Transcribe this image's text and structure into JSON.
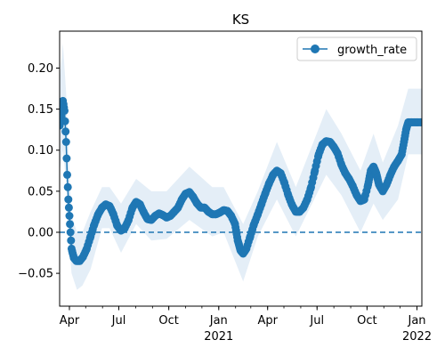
{
  "chart_data": {
    "type": "line",
    "title": "KS",
    "xlabel": "",
    "ylabel": "",
    "xlim": [
      "2020-03-14",
      "2022-01-10"
    ],
    "ylim": [
      -0.09,
      0.245
    ],
    "grid": false,
    "legend": {
      "placement": "top-right",
      "entries": [
        "growth_rate"
      ]
    },
    "colors": {
      "series": "#1f77b4",
      "band": "#dbe8f4",
      "zero_line": "#1f77b4"
    },
    "x_ticks": [
      {
        "date": "2020-04-01",
        "label": "Apr",
        "sub": ""
      },
      {
        "date": "2020-07-01",
        "label": "Jul",
        "sub": ""
      },
      {
        "date": "2020-10-01",
        "label": "Oct",
        "sub": ""
      },
      {
        "date": "2021-01-01",
        "label": "Jan",
        "sub": "2021"
      },
      {
        "date": "2021-04-01",
        "label": "Apr",
        "sub": ""
      },
      {
        "date": "2021-07-01",
        "label": "Jul",
        "sub": ""
      },
      {
        "date": "2021-10-01",
        "label": "Oct",
        "sub": ""
      },
      {
        "date": "2022-01-01",
        "label": "Jan",
        "sub": "2022"
      }
    ],
    "y_ticks": [
      {
        "value": -0.05,
        "label": "−0.05"
      },
      {
        "value": 0.0,
        "label": "0.00"
      },
      {
        "value": 0.05,
        "label": "0.05"
      },
      {
        "value": 0.1,
        "label": "0.10"
      },
      {
        "value": 0.15,
        "label": "0.15"
      },
      {
        "value": 0.2,
        "label": "0.20"
      }
    ],
    "reference_line": {
      "y": 0.0,
      "style": "dashed"
    },
    "series": [
      {
        "name": "growth_rate",
        "points": [
          [
            "2020-03-14",
            0.13
          ],
          [
            "2020-03-18",
            0.148
          ],
          [
            "2020-03-20",
            0.16
          ],
          [
            "2020-03-23",
            0.148
          ],
          [
            "2020-03-26",
            0.11
          ],
          [
            "2020-03-28",
            0.07
          ],
          [
            "2020-03-30",
            0.04
          ],
          [
            "2020-04-02",
            0.01
          ],
          [
            "2020-04-05",
            -0.02
          ],
          [
            "2020-04-09",
            -0.031
          ],
          [
            "2020-04-14",
            -0.035
          ],
          [
            "2020-04-20",
            -0.035
          ],
          [
            "2020-04-26",
            -0.03
          ],
          [
            "2020-05-03",
            -0.02
          ],
          [
            "2020-05-10",
            -0.005
          ],
          [
            "2020-05-17",
            0.01
          ],
          [
            "2020-05-24",
            0.022
          ],
          [
            "2020-05-31",
            0.03
          ],
          [
            "2020-06-07",
            0.034
          ],
          [
            "2020-06-14",
            0.032
          ],
          [
            "2020-06-21",
            0.022
          ],
          [
            "2020-06-28",
            0.008
          ],
          [
            "2020-07-05",
            0.002
          ],
          [
            "2020-07-12",
            0.005
          ],
          [
            "2020-07-19",
            0.015
          ],
          [
            "2020-07-26",
            0.03
          ],
          [
            "2020-08-02",
            0.037
          ],
          [
            "2020-08-09",
            0.034
          ],
          [
            "2020-08-16",
            0.024
          ],
          [
            "2020-08-23",
            0.016
          ],
          [
            "2020-08-30",
            0.015
          ],
          [
            "2020-09-06",
            0.02
          ],
          [
            "2020-09-13",
            0.023
          ],
          [
            "2020-09-20",
            0.021
          ],
          [
            "2020-09-27",
            0.018
          ],
          [
            "2020-10-04",
            0.02
          ],
          [
            "2020-10-11",
            0.025
          ],
          [
            "2020-10-18",
            0.03
          ],
          [
            "2020-10-25",
            0.04
          ],
          [
            "2020-11-01",
            0.047
          ],
          [
            "2020-11-08",
            0.049
          ],
          [
            "2020-11-15",
            0.043
          ],
          [
            "2020-11-22",
            0.035
          ],
          [
            "2020-11-29",
            0.03
          ],
          [
            "2020-12-06",
            0.03
          ],
          [
            "2020-12-13",
            0.025
          ],
          [
            "2020-12-20",
            0.022
          ],
          [
            "2020-12-27",
            0.022
          ],
          [
            "2021-01-03",
            0.024
          ],
          [
            "2021-01-10",
            0.027
          ],
          [
            "2021-01-17",
            0.026
          ],
          [
            "2021-01-24",
            0.02
          ],
          [
            "2021-01-31",
            0.01
          ],
          [
            "2021-02-05",
            -0.01
          ],
          [
            "2021-02-10",
            -0.022
          ],
          [
            "2021-02-15",
            -0.026
          ],
          [
            "2021-02-21",
            -0.02
          ],
          [
            "2021-02-28",
            -0.005
          ],
          [
            "2021-03-07",
            0.01
          ],
          [
            "2021-03-14",
            0.022
          ],
          [
            "2021-03-21",
            0.035
          ],
          [
            "2021-03-28",
            0.048
          ],
          [
            "2021-04-04",
            0.06
          ],
          [
            "2021-04-11",
            0.07
          ],
          [
            "2021-04-18",
            0.075
          ],
          [
            "2021-04-25",
            0.072
          ],
          [
            "2021-05-02",
            0.06
          ],
          [
            "2021-05-09",
            0.045
          ],
          [
            "2021-05-16",
            0.033
          ],
          [
            "2021-05-23",
            0.025
          ],
          [
            "2021-05-30",
            0.025
          ],
          [
            "2021-06-06",
            0.03
          ],
          [
            "2021-06-13",
            0.04
          ],
          [
            "2021-06-20",
            0.055
          ],
          [
            "2021-06-27",
            0.075
          ],
          [
            "2021-07-04",
            0.095
          ],
          [
            "2021-07-11",
            0.107
          ],
          [
            "2021-07-18",
            0.111
          ],
          [
            "2021-07-25",
            0.11
          ],
          [
            "2021-08-01",
            0.104
          ],
          [
            "2021-08-08",
            0.096
          ],
          [
            "2021-08-15",
            0.082
          ],
          [
            "2021-08-22",
            0.072
          ],
          [
            "2021-08-29",
            0.065
          ],
          [
            "2021-09-05",
            0.056
          ],
          [
            "2021-09-12",
            0.045
          ],
          [
            "2021-09-19",
            0.038
          ],
          [
            "2021-09-26",
            0.04
          ],
          [
            "2021-10-03",
            0.058
          ],
          [
            "2021-10-08",
            0.075
          ],
          [
            "2021-10-13",
            0.08
          ],
          [
            "2021-10-18",
            0.072
          ],
          [
            "2021-10-23",
            0.058
          ],
          [
            "2021-10-30",
            0.05
          ],
          [
            "2021-11-06",
            0.058
          ],
          [
            "2021-11-13",
            0.07
          ],
          [
            "2021-11-20",
            0.08
          ],
          [
            "2021-11-27",
            0.087
          ],
          [
            "2021-12-04",
            0.095
          ],
          [
            "2021-12-08",
            0.11
          ],
          [
            "2021-12-12",
            0.125
          ],
          [
            "2021-12-16",
            0.134
          ],
          [
            "2021-12-23",
            0.134
          ],
          [
            "2022-01-01",
            0.134
          ],
          [
            "2022-01-10",
            0.134
          ]
        ],
        "band": [
          [
            "2020-03-14",
            0.075,
            0.185
          ],
          [
            "2020-03-20",
            0.1,
            0.23
          ],
          [
            "2020-03-26",
            0.06,
            0.17
          ],
          [
            "2020-03-30",
            0.0,
            0.1
          ],
          [
            "2020-04-05",
            -0.05,
            0.02
          ],
          [
            "2020-04-15",
            -0.07,
            0.0
          ],
          [
            "2020-04-25",
            -0.065,
            0.0
          ],
          [
            "2020-05-10",
            -0.045,
            0.025
          ],
          [
            "2020-05-31",
            0.005,
            0.055
          ],
          [
            "2020-06-14",
            0.005,
            0.055
          ],
          [
            "2020-07-05",
            -0.025,
            0.035
          ],
          [
            "2020-08-02",
            0.01,
            0.065
          ],
          [
            "2020-08-30",
            -0.01,
            0.05
          ],
          [
            "2020-09-27",
            -0.008,
            0.05
          ],
          [
            "2020-11-08",
            0.015,
            0.08
          ],
          [
            "2020-12-20",
            -0.005,
            0.055
          ],
          [
            "2021-01-10",
            0.0,
            0.055
          ],
          [
            "2021-02-15",
            -0.06,
            0.01
          ],
          [
            "2021-03-14",
            -0.005,
            0.05
          ],
          [
            "2021-04-18",
            0.04,
            0.11
          ],
          [
            "2021-05-23",
            -0.005,
            0.055
          ],
          [
            "2021-07-18",
            0.07,
            0.15
          ],
          [
            "2021-08-15",
            0.045,
            0.12
          ],
          [
            "2021-09-19",
            0.0,
            0.075
          ],
          [
            "2021-10-13",
            0.035,
            0.12
          ],
          [
            "2021-10-30",
            0.015,
            0.085
          ],
          [
            "2021-11-27",
            0.04,
            0.13
          ],
          [
            "2021-12-16",
            0.095,
            0.175
          ],
          [
            "2022-01-10",
            0.095,
            0.175
          ]
        ]
      }
    ]
  }
}
